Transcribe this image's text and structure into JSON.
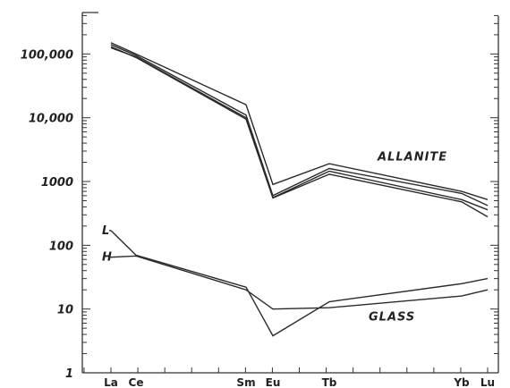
{
  "chart_data": {
    "type": "line",
    "y_scale": "log",
    "ylim": [
      1,
      1000000
    ],
    "y_ticks": [
      1,
      10,
      100,
      1000,
      10000,
      100000
    ],
    "y_tick_labels": [
      "1",
      "10",
      "100",
      "1000",
      "10,000",
      "100,000"
    ],
    "categories": [
      "La",
      "Ce",
      "Sm",
      "Eu",
      "Tb",
      "Yb",
      "Lu"
    ],
    "grid": false,
    "series": [
      {
        "group": "allanite",
        "values": [
          150000,
          100000,
          16000,
          900,
          1900,
          700,
          520
        ]
      },
      {
        "group": "allanite",
        "values": [
          140000,
          95000,
          11000,
          600,
          1600,
          650,
          420
        ]
      },
      {
        "group": "allanite",
        "values": [
          125000,
          90000,
          10000,
          560,
          1450,
          520,
          360
        ]
      },
      {
        "group": "allanite",
        "values": [
          130000,
          88000,
          9500,
          550,
          1300,
          480,
          280
        ]
      },
      {
        "group": "glass",
        "name": "L",
        "values": [
          170,
          70,
          22,
          3.8,
          13,
          25,
          30
        ]
      },
      {
        "group": "glass",
        "name": "H",
        "values": [
          65,
          68,
          20,
          10,
          10.5,
          16,
          20
        ]
      }
    ],
    "annotations": [
      {
        "text": "ALLANITE"
      },
      {
        "text": "GLASS"
      }
    ]
  }
}
